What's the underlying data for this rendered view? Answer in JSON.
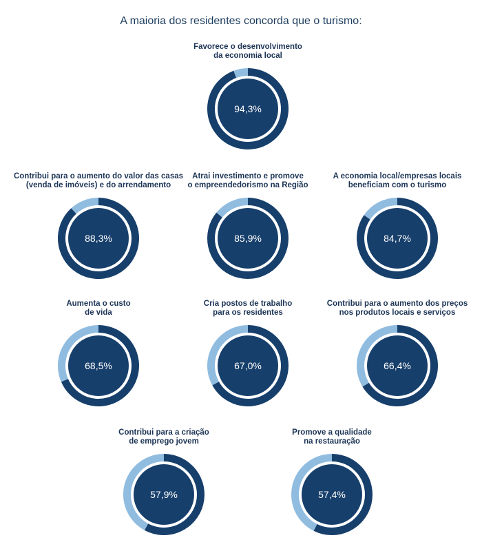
{
  "chart_data": {
    "type": "pie",
    "title": "A maioria dos residentes concorda que o turismo:",
    "colors": {
      "agree": "#173f6b",
      "remainder": "#90bce0"
    },
    "charts": [
      {
        "label": [
          "Favorece o desenvolvimento",
          "da economia local"
        ],
        "value": 94.3,
        "display": "94,3%"
      },
      {
        "label": [
          "Contribui para o aumento do valor das casas",
          "(venda de imóveis) e do arrendamento"
        ],
        "value": 88.3,
        "display": "88,3%"
      },
      {
        "label": [
          "Atrai investimento e promove",
          "o empreendedorismo na Região"
        ],
        "value": 85.9,
        "display": "85,9%"
      },
      {
        "label": [
          "A economia local/empresas locais",
          "beneficiam com o turismo"
        ],
        "value": 84.7,
        "display": "84,7%"
      },
      {
        "label": [
          "Aumenta o custo",
          "de vida"
        ],
        "value": 68.5,
        "display": "68,5%"
      },
      {
        "label": [
          "Cria postos de trabalho",
          "para os residentes"
        ],
        "value": 67.0,
        "display": "67,0%"
      },
      {
        "label": [
          "Contribui para o aumento dos preços",
          "nos produtos locais e serviços"
        ],
        "value": 66.4,
        "display": "66,4%"
      },
      {
        "label": [
          "Contribui para a criação",
          "de emprego jovem"
        ],
        "value": 57.9,
        "display": "57,9%"
      },
      {
        "label": [
          "Promove a qualidade",
          "na restauração"
        ],
        "value": 57.4,
        "display": "57,4%"
      }
    ]
  }
}
